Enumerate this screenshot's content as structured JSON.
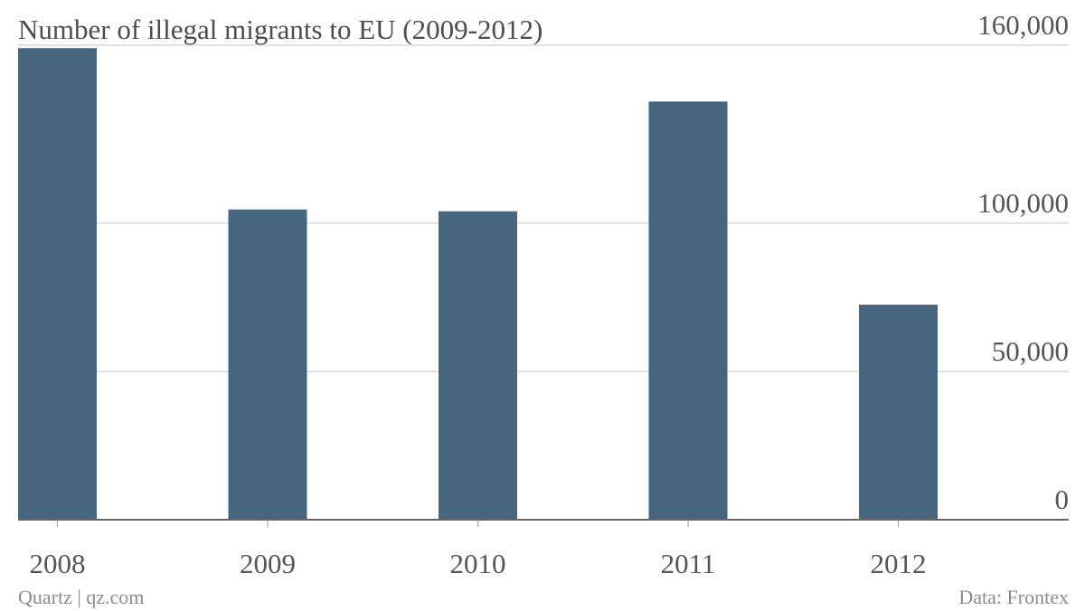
{
  "chart_data": {
    "type": "bar",
    "title": "Number of illegal migrants to EU (2009-2012)",
    "categories": [
      "2008",
      "2009",
      "2010",
      "2011",
      "2012"
    ],
    "values": [
      159000,
      104600,
      104000,
      141000,
      72500
    ],
    "ylim": [
      0,
      160000
    ],
    "yticks": [
      {
        "value": 0,
        "label": "0"
      },
      {
        "value": 50000,
        "label": "50,000"
      },
      {
        "value": 100000,
        "label": "100,000"
      },
      {
        "value": 160000,
        "label": "160,000"
      }
    ],
    "xlabel": "",
    "ylabel": "",
    "grid": true,
    "colors": {
      "bar": "#46657e"
    }
  },
  "footer": {
    "source_left": "Quartz | qz.com",
    "source_right": "Data: Frontex"
  }
}
